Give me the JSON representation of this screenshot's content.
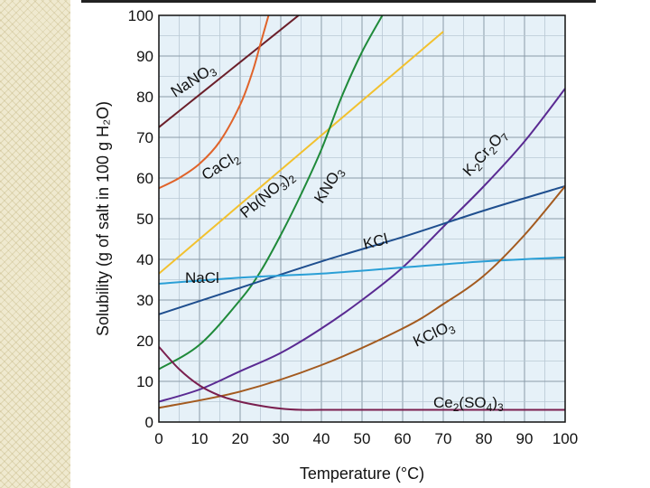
{
  "chart_data": {
    "type": "line",
    "xlabel": "Temperature (°C)",
    "ylabel": "Solubility (g of salt in 100 g H₂O)",
    "xlim": [
      0,
      100
    ],
    "ylim": [
      0,
      100
    ],
    "x_ticks": [
      0,
      10,
      20,
      30,
      40,
      50,
      60,
      70,
      80,
      90,
      100
    ],
    "y_ticks": [
      0,
      10,
      20,
      30,
      40,
      50,
      60,
      70,
      80,
      90,
      100
    ],
    "grid": true,
    "series": [
      {
        "name": "NaNO3",
        "color": "#6b1f2a",
        "x": [
          0,
          10,
          20,
          30,
          35
        ],
        "y": [
          72.5,
          80.5,
          88.5,
          96.5,
          100.5
        ]
      },
      {
        "name": "CaCl2",
        "color": "#e0632a",
        "x": [
          0,
          5,
          10,
          15,
          20,
          23,
          25,
          27
        ],
        "y": [
          57.5,
          60,
          63.5,
          69,
          78,
          86,
          93,
          100
        ]
      },
      {
        "name": "Pb(NO3)2",
        "color": "#f2c12e",
        "x": [
          0,
          20,
          40,
          60,
          70
        ],
        "y": [
          36.5,
          53.5,
          70.5,
          87.5,
          96
        ]
      },
      {
        "name": "KNO3",
        "color": "#1f8a3a",
        "x": [
          0,
          10,
          20,
          25,
          30,
          35,
          40,
          45,
          50,
          55
        ],
        "y": [
          13,
          19,
          30,
          37,
          46,
          56,
          67,
          80,
          91,
          100
        ]
      },
      {
        "name": "K2Cr2O7",
        "color": "#5a2a92",
        "x": [
          0,
          10,
          20,
          30,
          40,
          50,
          60,
          70,
          80,
          90,
          100
        ],
        "y": [
          5,
          8,
          12.5,
          17,
          23,
          30,
          38,
          48,
          58,
          69,
          82
        ]
      },
      {
        "name": "KCl",
        "color": "#1f4f8f",
        "x": [
          0,
          20,
          40,
          60,
          80,
          100
        ],
        "y": [
          26.5,
          33,
          39.5,
          45.5,
          52,
          58
        ]
      },
      {
        "name": "NaCl",
        "color": "#2a9fd6",
        "x": [
          0,
          20,
          40,
          60,
          80,
          100
        ],
        "y": [
          34,
          35.5,
          36.5,
          38,
          39.5,
          40.5
        ]
      },
      {
        "name": "KClO3",
        "color": "#a35a1f",
        "x": [
          0,
          20,
          40,
          60,
          70,
          80,
          90,
          100
        ],
        "y": [
          3.5,
          7.5,
          14,
          23,
          29,
          36,
          46,
          58
        ]
      },
      {
        "name": "Ce2(SO4)3",
        "color": "#7a1f4f",
        "x": [
          0,
          5,
          10,
          15,
          20,
          25,
          30,
          35,
          40,
          60,
          80,
          100
        ],
        "y": [
          18.5,
          13,
          9,
          6.5,
          5,
          4,
          3.3,
          3,
          3,
          3,
          3,
          3
        ]
      }
    ]
  }
}
